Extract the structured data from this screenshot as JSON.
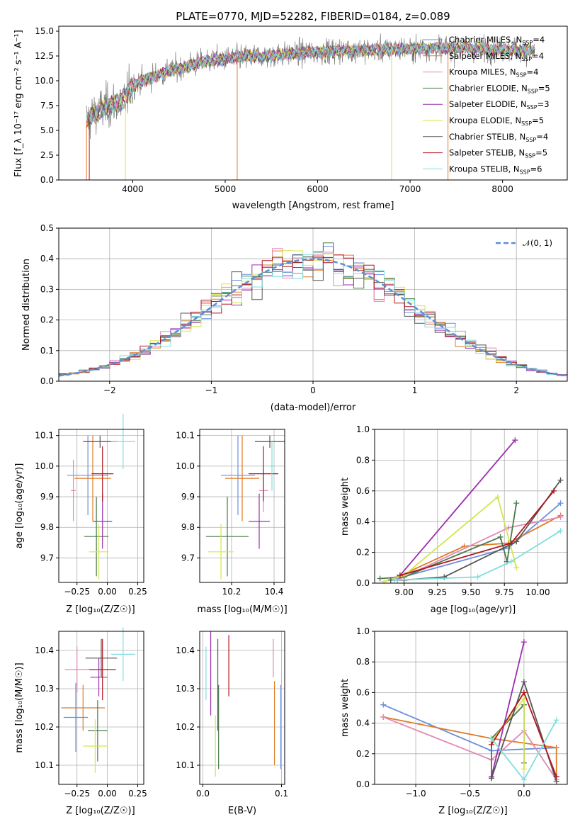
{
  "colors": [
    "#6a8fde",
    "#e07b27",
    "#e08ab8",
    "#4a7a4a",
    "#9b2fae",
    "#d4e64a",
    "#555555",
    "#b0171f",
    "#7fdede"
  ],
  "chart_data": [
    {
      "id": "spectrum",
      "type": "line",
      "title": "PLATE=0770, MJD=52282, FIBERID=0184, z=0.089",
      "xlabel": "wavelength [Angstrom, rest frame]",
      "ylabel": "Flux [f_λ 10⁻¹⁷ erg cm⁻² s⁻¹ A⁻¹]",
      "xlim": [
        3200,
        8700
      ],
      "ylim": [
        0,
        15.5
      ],
      "xticks": [
        "4000",
        "5000",
        "6000",
        "7000",
        "8000"
      ],
      "xtick_values": [
        4000,
        5000,
        6000,
        7000,
        8000
      ],
      "yticks": [
        "0.0",
        "2.5",
        "5.0",
        "7.5",
        "10.0",
        "12.5",
        "15.0"
      ],
      "ytick_values": [
        0,
        2.5,
        5,
        7.5,
        10,
        12.5,
        15
      ],
      "continuum": {
        "x": [
          3500,
          3600,
          3700,
          3800,
          3900,
          4000,
          4200,
          4400,
          4600,
          4800,
          5000,
          5200,
          5400,
          5600,
          5800,
          6000,
          6200,
          6400,
          6600,
          6800,
          7000,
          7200,
          7400,
          7600,
          7800,
          8000,
          8200,
          8400
        ],
        "y": [
          6.0,
          6.8,
          7.3,
          7.7,
          8.0,
          9.5,
          10.4,
          11.0,
          11.5,
          12.0,
          12.2,
          12.4,
          12.5,
          12.6,
          12.8,
          12.9,
          13.0,
          13.1,
          13.1,
          13.2,
          13.2,
          13.3,
          13.3,
          13.3,
          13.2,
          13.2,
          13.1,
          13.0
        ]
      },
      "legend": [
        {
          "base": "Chabrier MILES, N",
          "sub": "SSP",
          "tail": "=4",
          "color": "#6a8fde"
        },
        {
          "base": "Salpeter MILES, N",
          "sub": "SSP",
          "tail": "=4",
          "color": "#e07b27"
        },
        {
          "base": "Kroupa MILES, N",
          "sub": "SSP",
          "tail": "=4",
          "color": "#e08ab8"
        },
        {
          "base": "Chabrier ELODIE, N",
          "sub": "SSP",
          "tail": "=5",
          "color": "#4a7a4a"
        },
        {
          "base": "Salpeter ELODIE, N",
          "sub": "SSP",
          "tail": "=3",
          "color": "#9b2fae"
        },
        {
          "base": "Kroupa ELODIE, N",
          "sub": "SSP",
          "tail": "=5",
          "color": "#d4e64a"
        },
        {
          "base": "Chabrier STELIB, N",
          "sub": "SSP",
          "tail": "=4",
          "color": "#555555"
        },
        {
          "base": "Salpeter STELIB, N",
          "sub": "SSP",
          "tail": "=5",
          "color": "#b0171f"
        },
        {
          "base": "Kroupa STELIB, N",
          "sub": "SSP",
          "tail": "=6",
          "color": "#7fdede"
        }
      ]
    },
    {
      "id": "residuals",
      "type": "histogram",
      "xlabel": "(data-model)/error",
      "ylabel": "Normed distribution",
      "xlim": [
        -2.5,
        2.5
      ],
      "ylim": [
        0,
        0.5
      ],
      "xticks": [
        "−2",
        "−1",
        "0",
        "1",
        "2"
      ],
      "xtick_values": [
        -2,
        -1,
        0,
        1,
        2
      ],
      "yticks": [
        "0.0",
        "0.1",
        "0.2",
        "0.3",
        "0.4",
        "0.5"
      ],
      "ytick_values": [
        0,
        0.1,
        0.2,
        0.3,
        0.4,
        0.5
      ],
      "bin_width": 0.1,
      "legend_label": "𝒩(0, 1)",
      "legend_color": "#5b8fd6"
    },
    {
      "id": "age-vs-Z",
      "type": "errorbar",
      "xlabel": "Z [log₁₀(Z/Z☉)]",
      "ylabel": "age [log₁₀(age/yr)]",
      "xlim": [
        -0.4,
        0.3
      ],
      "ylim": [
        9.62,
        10.12
      ],
      "xticks": [
        "−0.25",
        "0.00",
        "0.25"
      ],
      "xtick_values": [
        -0.25,
        0,
        0.25
      ],
      "yticks": [
        "9.7",
        "9.8",
        "9.9",
        "10.0",
        "10.1"
      ],
      "ytick_values": [
        9.7,
        9.8,
        9.9,
        10.0,
        10.1
      ],
      "points": [
        {
          "c": 0,
          "x": -0.16,
          "y": 9.97,
          "xe": 0.17,
          "ye": 0.13
        },
        {
          "c": 1,
          "x": -0.12,
          "y": 9.96,
          "xe": 0.15,
          "ye": 0.14
        },
        {
          "c": 2,
          "x": -0.28,
          "y": 9.92,
          "xe": 0.02,
          "ye": 0.1
        },
        {
          "c": 3,
          "x": -0.09,
          "y": 9.77,
          "xe": 0.1,
          "ye": 0.13
        },
        {
          "c": 4,
          "x": -0.04,
          "y": 9.82,
          "xe": 0.08,
          "ye": 0.09
        },
        {
          "c": 5,
          "x": -0.07,
          "y": 9.72,
          "xe": 0.08,
          "ye": 0.09
        },
        {
          "c": 6,
          "x": -0.06,
          "y": 10.08,
          "xe": 0.14,
          "ye": 0.02
        },
        {
          "c": 7,
          "x": -0.04,
          "y": 9.975,
          "xe": 0.09,
          "ye": 0.09
        },
        {
          "c": 8,
          "x": 0.13,
          "y": 10.08,
          "xe": 0.1,
          "ye": 0.09
        }
      ]
    },
    {
      "id": "age-vs-mass",
      "type": "errorbar",
      "xlabel": "mass [log₁₀(M/M☉)]",
      "ylabel": "",
      "xlim": [
        10.05,
        10.45
      ],
      "ylim": [
        9.62,
        10.12
      ],
      "xticks": [
        "10.2",
        "10.4"
      ],
      "xtick_values": [
        10.2,
        10.4
      ],
      "yticks": [
        "9.7",
        "9.8",
        "9.9",
        "10.0",
        "10.1"
      ],
      "ytick_values": [
        9.7,
        9.8,
        9.9,
        10.0,
        10.1
      ],
      "points": [
        {
          "c": 0,
          "x": 10.23,
          "y": 9.97,
          "xe": 0.08,
          "ye": 0.13
        },
        {
          "c": 1,
          "x": 10.25,
          "y": 9.96,
          "xe": 0.08,
          "ye": 0.14
        },
        {
          "c": 2,
          "x": 10.35,
          "y": 9.92,
          "xe": 0.02,
          "ye": 0.07
        },
        {
          "c": 3,
          "x": 10.18,
          "y": 9.77,
          "xe": 0.1,
          "ye": 0.13
        },
        {
          "c": 4,
          "x": 10.33,
          "y": 9.82,
          "xe": 0.05,
          "ye": 0.09
        },
        {
          "c": 5,
          "x": 10.15,
          "y": 9.72,
          "xe": 0.06,
          "ye": 0.09
        },
        {
          "c": 6,
          "x": 10.38,
          "y": 10.08,
          "xe": 0.07,
          "ye": 0.02
        },
        {
          "c": 7,
          "x": 10.35,
          "y": 9.975,
          "xe": 0.07,
          "ye": 0.09
        },
        {
          "c": 8,
          "x": 10.39,
          "y": 10.0,
          "xe": 0.01,
          "ye": 0.08
        }
      ]
    },
    {
      "id": "weight-vs-age",
      "type": "line",
      "xlabel": "age [log₁₀(age/yr)]",
      "ylabel": "mass weight",
      "xlim": [
        8.78,
        10.22
      ],
      "ylim": [
        0,
        1
      ],
      "xticks": [
        "9.00",
        "9.25",
        "9.50",
        "9.75",
        "10.00"
      ],
      "xtick_values": [
        9.0,
        9.25,
        9.5,
        9.75,
        10.0
      ],
      "yticks": [
        "0.0",
        "0.2",
        "0.4",
        "0.6",
        "0.8",
        "1.0"
      ],
      "ytick_values": [
        0,
        0.2,
        0.4,
        0.6,
        0.8,
        1.0
      ],
      "series": [
        {
          "c": 0,
          "x": [
            8.95,
            9.78,
            10.17
          ],
          "y": [
            0.03,
            0.23,
            0.52
          ]
        },
        {
          "c": 1,
          "x": [
            8.95,
            9.45,
            9.78,
            10.17
          ],
          "y": [
            0.04,
            0.24,
            0.26,
            0.44
          ]
        },
        {
          "c": 2,
          "x": [
            8.95,
            9.78,
            10.17
          ],
          "y": [
            0.02,
            0.36,
            0.43
          ]
        },
        {
          "c": 3,
          "x": [
            8.82,
            9.0,
            9.72,
            9.77,
            9.84
          ],
          "y": [
            0.03,
            0.04,
            0.3,
            0.14,
            0.52
          ]
        },
        {
          "c": 4,
          "x": [
            8.97,
            9.83
          ],
          "y": [
            0.05,
            0.93
          ]
        },
        {
          "c": 5,
          "x": [
            8.85,
            9.0,
            9.7,
            9.84
          ],
          "y": [
            0.01,
            0.05,
            0.56,
            0.1
          ]
        },
        {
          "c": 6,
          "x": [
            8.9,
            9.0,
            9.3,
            9.84,
            10.17
          ],
          "y": [
            0.02,
            0.02,
            0.04,
            0.27,
            0.67
          ]
        },
        {
          "c": 7,
          "x": [
            8.97,
            9.8,
            10.12
          ],
          "y": [
            0.05,
            0.26,
            0.6
          ]
        },
        {
          "c": 8,
          "x": [
            8.93,
            9.55,
            9.8,
            10.17
          ],
          "y": [
            0.02,
            0.04,
            0.14,
            0.34
          ]
        }
      ]
    },
    {
      "id": "mass-vs-Z",
      "type": "errorbar",
      "xlabel": "Z [log₁₀(Z/Z☉)]",
      "ylabel": "mass [log₁₀(M/M☉)]",
      "xlim": [
        -0.4,
        0.3
      ],
      "ylim": [
        10.05,
        10.45
      ],
      "xticks": [
        "−0.25",
        "0.00",
        "0.25"
      ],
      "xtick_values": [
        -0.25,
        0,
        0.25
      ],
      "yticks": [
        "10.1",
        "10.2",
        "10.3",
        "10.4"
      ],
      "ytick_values": [
        10.1,
        10.2,
        10.3,
        10.4
      ],
      "points": [
        {
          "c": 0,
          "x": -0.26,
          "y": 10.225,
          "xe": 0.1,
          "ye": 0.09
        },
        {
          "c": 1,
          "x": -0.2,
          "y": 10.25,
          "xe": 0.18,
          "ye": 0.06
        },
        {
          "c": 2,
          "x": -0.25,
          "y": 10.35,
          "xe": 0.1,
          "ye": 0.06
        },
        {
          "c": 3,
          "x": -0.08,
          "y": 10.19,
          "xe": 0.08,
          "ye": 0.08
        },
        {
          "c": 4,
          "x": -0.07,
          "y": 10.33,
          "xe": 0.07,
          "ye": 0.05
        },
        {
          "c": 5,
          "x": -0.1,
          "y": 10.15,
          "xe": 0.1,
          "ye": 0.07
        },
        {
          "c": 6,
          "x": -0.05,
          "y": 10.38,
          "xe": 0.13,
          "ye": 0.05
        },
        {
          "c": 7,
          "x": -0.04,
          "y": 10.35,
          "xe": 0.11,
          "ye": 0.08
        },
        {
          "c": 8,
          "x": 0.13,
          "y": 10.39,
          "xe": 0.1,
          "ye": 0.07
        }
      ]
    },
    {
      "id": "mass-vs-ebv",
      "type": "errorbar",
      "xlabel": "E(B-V)",
      "ylabel": "",
      "xlim": [
        -0.004,
        0.104
      ],
      "ylim": [
        10.05,
        10.45
      ],
      "xticks": [
        "0.0",
        "0.1"
      ],
      "xtick_values": [
        0,
        0.1
      ],
      "yticks": [
        "10.1",
        "10.2",
        "10.3",
        "10.4"
      ],
      "ytick_values": [
        10.1,
        10.2,
        10.3,
        10.4
      ],
      "points": [
        {
          "c": 0,
          "x": 0.099,
          "y": 10.2,
          "xe": 0,
          "ye": 0.11
        },
        {
          "c": 1,
          "x": 0.091,
          "y": 10.21,
          "xe": 0,
          "ye": 0.11
        },
        {
          "c": 2,
          "x": 0.0895,
          "y": 10.38,
          "xe": 0,
          "ye": 0.05
        },
        {
          "c": 3,
          "x": 0.02,
          "y": 10.2,
          "xe": 0,
          "ye": 0.11
        },
        {
          "c": 4,
          "x": 0.01,
          "y": 10.34,
          "xe": 0,
          "ye": 0.11
        },
        {
          "c": 5,
          "x": 0.016,
          "y": 10.15,
          "xe": 0,
          "ye": 0.08
        },
        {
          "c": 6,
          "x": 0.019,
          "y": 10.31,
          "xe": 0,
          "ye": 0.12
        },
        {
          "c": 7,
          "x": 0.033,
          "y": 10.36,
          "xe": 0,
          "ye": 0.08
        },
        {
          "c": 8,
          "x": 0.004,
          "y": 10.34,
          "xe": 0,
          "ye": 0.07
        }
      ]
    },
    {
      "id": "weight-vs-Z",
      "type": "line",
      "xlabel": "Z [log₁₀(Z/Z☉)]",
      "ylabel": "mass weight",
      "xlim": [
        -1.38,
        0.4
      ],
      "ylim": [
        0,
        1
      ],
      "xticks": [
        "−1.0",
        "−0.5",
        "0.0"
      ],
      "xtick_values": [
        -1.0,
        -0.5,
        0.0
      ],
      "yticks": [
        "0.0",
        "0.2",
        "0.4",
        "0.6",
        "0.8",
        "1.0"
      ],
      "ytick_values": [
        0,
        0.2,
        0.4,
        0.6,
        0.8,
        1.0
      ],
      "series": [
        {
          "c": 0,
          "x": [
            -1.3,
            -0.3,
            0.0,
            0.3
          ],
          "y": [
            0.52,
            0.22,
            0.23,
            0.24
          ]
        },
        {
          "c": 1,
          "x": [
            -1.3,
            -0.3,
            0.3,
            0.3
          ],
          "y": [
            0.44,
            0.3,
            0.24,
            0.05
          ]
        },
        {
          "c": 2,
          "x": [
            -1.3,
            -0.3,
            0.0,
            0.3
          ],
          "y": [
            0.44,
            0.16,
            0.35,
            0.03
          ]
        },
        {
          "c": 3,
          "x": [
            -0.3,
            -0.3,
            0.0,
            0.0
          ],
          "y": [
            0.04,
            0.3,
            0.52,
            0.14
          ]
        },
        {
          "c": 4,
          "x": [
            -0.3,
            0.0
          ],
          "y": [
            0.05,
            0.93
          ]
        },
        {
          "c": 5,
          "x": [
            -0.3,
            0.0,
            0.0
          ],
          "y": [
            0.28,
            0.56,
            0.1
          ]
        },
        {
          "c": 6,
          "x": [
            -0.3,
            0.0,
            0.3
          ],
          "y": [
            0.04,
            0.67,
            0.02
          ]
        },
        {
          "c": 7,
          "x": [
            -0.3,
            0.0,
            0.3
          ],
          "y": [
            0.26,
            0.6,
            0.05
          ]
        },
        {
          "c": 8,
          "x": [
            -0.3,
            0.0,
            0.3
          ],
          "y": [
            0.3,
            0.03,
            0.42
          ]
        }
      ]
    }
  ]
}
